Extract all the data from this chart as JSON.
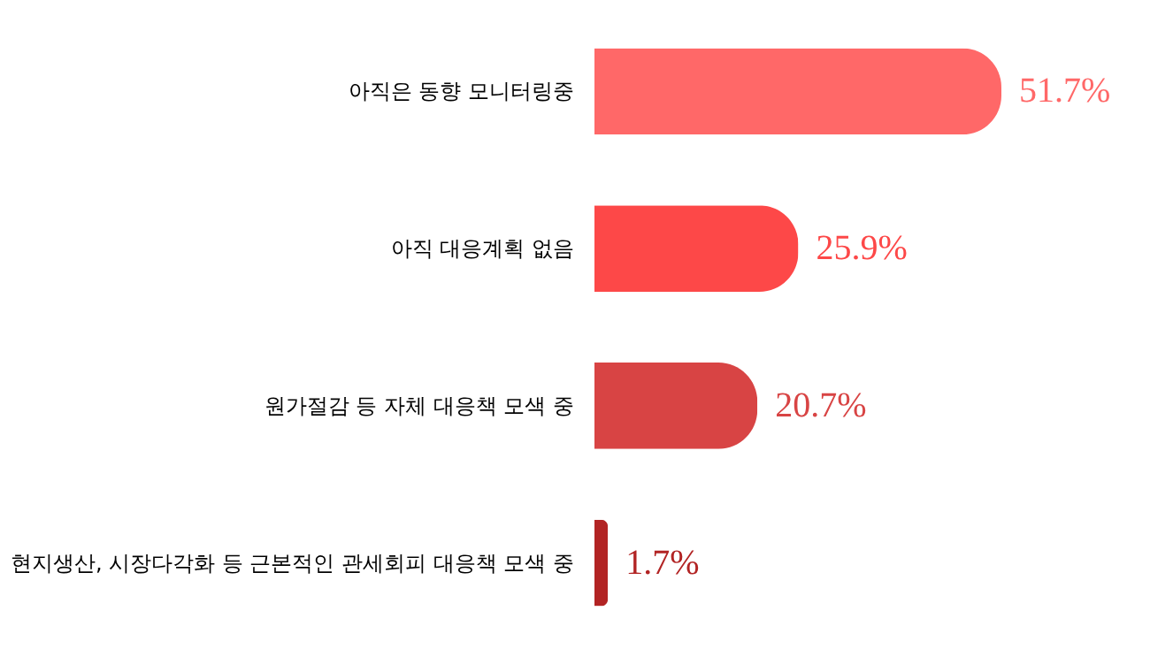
{
  "chart_data": {
    "type": "bar",
    "orientation": "horizontal",
    "categories": [
      "아직은 동향 모니터링중",
      "아직 대응계획 없음",
      "원가절감 등 자체 대응책 모색 중",
      "현지생산, 시장다각화 등 근본적인 관세회피 대응책 모색 중"
    ],
    "values": [
      51.7,
      25.9,
      20.7,
      1.7
    ],
    "value_labels": [
      "51.7%",
      "25.9%",
      "20.7%",
      "1.7%"
    ],
    "colors": [
      "#ff6868",
      "#fd4848",
      "#d84444",
      "#b22424"
    ]
  }
}
